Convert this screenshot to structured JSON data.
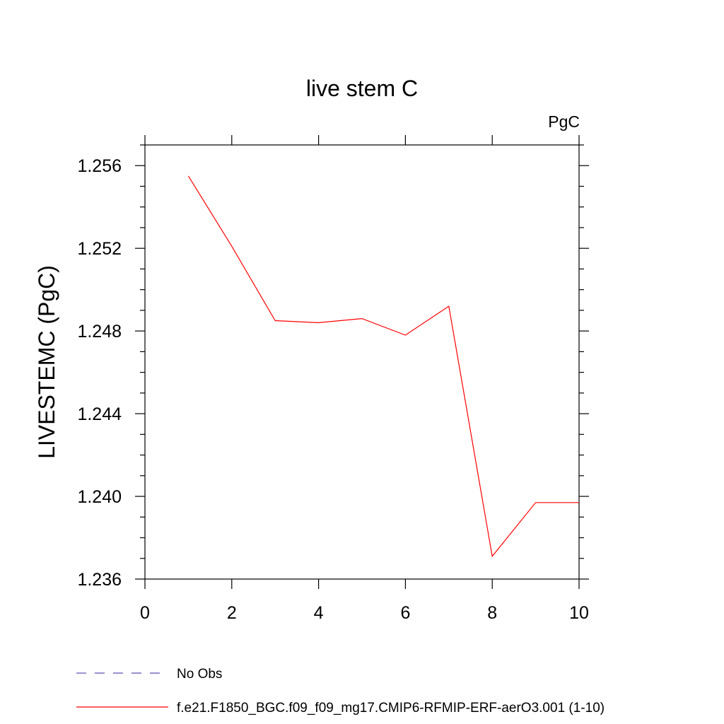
{
  "chart_data": {
    "type": "line",
    "title": "live stem C",
    "units_label": "PgC",
    "ylabel": "LIVESTEMC  (PgC)",
    "xlabel": "",
    "xlim": [
      0,
      10
    ],
    "ylim": [
      1.236,
      1.257
    ],
    "x_ticks": [
      "0",
      "2",
      "4",
      "6",
      "8",
      "10"
    ],
    "y_ticks": [
      "1.236",
      "1.240",
      "1.244",
      "1.248",
      "1.252",
      "1.256"
    ],
    "grid": false,
    "legend_position": "bottom-left",
    "series": [
      {
        "name": "f.e21.F1850_BGC.f09_f09_mg17.CMIP6-RFMIP-ERF-aerO3.001 (1-10)",
        "color": "#ff0000",
        "style": "solid",
        "x": [
          1,
          2,
          3,
          4,
          5,
          6,
          7,
          8,
          9,
          10
        ],
        "y": [
          1.2555,
          1.2521,
          1.2485,
          1.2484,
          1.2486,
          1.2478,
          1.2492,
          1.2371,
          1.2397,
          1.2397
        ]
      }
    ],
    "legend": [
      {
        "label": "No Obs",
        "color": "#5a4fb0",
        "style": "dashed"
      },
      {
        "label": "f.e21.F1850_BGC.f09_f09_mg17.CMIP6-RFMIP-ERF-aerO3.001 (1-10)",
        "color": "#ff0000",
        "style": "solid"
      }
    ]
  }
}
